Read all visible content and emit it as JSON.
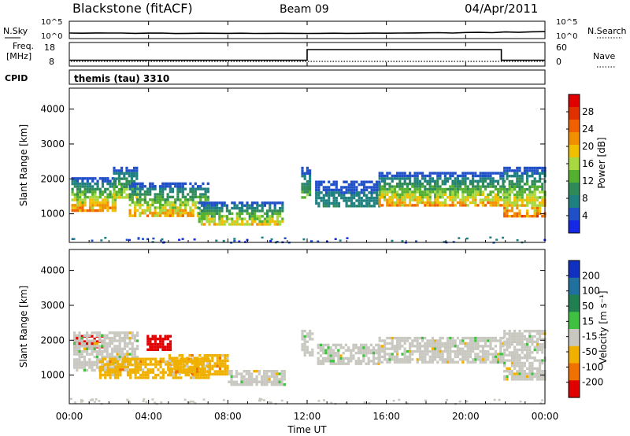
{
  "header": {
    "station": "Blackstone (fitACF)",
    "beam": "Beam 09",
    "date": "04/Apr/2011"
  },
  "chart_data": [
    {
      "type": "line",
      "panel": "noise",
      "left_label": "N.Sky",
      "right_label": "N.Search",
      "left_ticks": [
        "10^5",
        "10^0"
      ],
      "right_ticks": [
        "10^5",
        "10^0"
      ],
      "series": [
        {
          "values": [
            1.6,
            1.55,
            1.62,
            1.58,
            1.6,
            1.5,
            1.56,
            1.6,
            1.45,
            1.5,
            1.55,
            1.52,
            1.5,
            1.55,
            1.48,
            1.5,
            1.52,
            1.5,
            1.48,
            1.5,
            1.55,
            1.5,
            1.52,
            1.58,
            1.55,
            1.6,
            1.62,
            1.65,
            1.7,
            1.6,
            1.75,
            1.8,
            1.7,
            1.9,
            1.8,
            1.95,
            2.0
          ]
        }
      ]
    },
    {
      "type": "line",
      "panel": "frequency",
      "left_label": "Freq.",
      "left_unit": "[MHz]",
      "right_label": "Nave",
      "left_ticks": [
        "18",
        "8"
      ],
      "right_ticks": [
        "60",
        "0"
      ],
      "freq_segments": [
        {
          "start_hour": 0.0,
          "end_hour": 12.0,
          "value_mhz": 10.5
        },
        {
          "start_hour": 12.0,
          "end_hour": 21.8,
          "value_mhz": 15.0
        },
        {
          "start_hour": 21.8,
          "end_hour": 24.0,
          "value_mhz": 10.5
        }
      ],
      "nave_level": 10
    },
    {
      "type": "table",
      "panel": "cpid",
      "label": "CPID",
      "value": "themis (tau) 3310"
    },
    {
      "type": "heatmap",
      "panel": "power",
      "ylabel": "Slant Range [km]",
      "yticks": [
        1000,
        2000,
        3000,
        4000
      ],
      "ylim": [
        180,
        4600
      ],
      "xlim": [
        0,
        24
      ],
      "colorbar_label": "Power [dB]",
      "colorbar_ticks": [
        "28",
        "24",
        "20",
        "16",
        "12",
        "8",
        "4"
      ],
      "colors": [
        "#1428e6",
        "#2050c8",
        "#208080",
        "#2e8b57",
        "#55b030",
        "#a8d840",
        "#f0c000",
        "#f09000",
        "#f06000",
        "#e03000",
        "#e00000"
      ],
      "vmin": 0,
      "vmax": 32,
      "bands": [
        {
          "t0": 0.1,
          "t1": 2.3,
          "r_lo": 1100,
          "r_hi": 2050,
          "p_lo": 4,
          "p_hi": 28
        },
        {
          "t0": 2.2,
          "t1": 3.4,
          "r_lo": 1500,
          "r_hi": 2350,
          "p_lo": 4,
          "p_hi": 20
        },
        {
          "t0": 3.0,
          "t1": 7.0,
          "r_lo": 950,
          "r_hi": 1900,
          "p_lo": 4,
          "p_hi": 26
        },
        {
          "t0": 6.5,
          "t1": 10.8,
          "r_lo": 700,
          "r_hi": 1350,
          "p_lo": 4,
          "p_hi": 24
        },
        {
          "t0": 11.7,
          "t1": 12.2,
          "r_lo": 1500,
          "r_hi": 2350,
          "p_lo": 4,
          "p_hi": 16
        },
        {
          "t0": 12.4,
          "t1": 15.6,
          "r_lo": 1200,
          "r_hi": 1950,
          "p_lo": 4,
          "p_hi": 10
        },
        {
          "t0": 15.6,
          "t1": 21.9,
          "r_lo": 1250,
          "r_hi": 2200,
          "p_lo": 4,
          "p_hi": 26
        },
        {
          "t0": 21.9,
          "t1": 24.0,
          "r_lo": 900,
          "r_hi": 2350,
          "p_lo": 4,
          "p_hi": 30
        }
      ]
    },
    {
      "type": "heatmap",
      "panel": "velocity",
      "ylabel": "Slant Range [km]",
      "xlabel": "Time UT",
      "xticks": [
        "00:00",
        "04:00",
        "08:00",
        "12:00",
        "16:00",
        "20:00",
        "00:00"
      ],
      "yticks": [
        1000,
        2000,
        3000,
        4000
      ],
      "ylim": [
        180,
        4600
      ],
      "xlim": [
        0,
        24
      ],
      "colorbar_label": "Velocity [m s⁻¹]",
      "colorbar_ticks": [
        "200",
        "100",
        "50",
        "15",
        "-15",
        "-50",
        "-100",
        "-200"
      ],
      "colors": [
        "#1030c0",
        "#2070a0",
        "#208050",
        "#40c040",
        "#c8c8c0",
        "#f0b000",
        "#f07000",
        "#e00000"
      ],
      "bands": [
        {
          "t0": 0.2,
          "t1": 1.6,
          "r_lo": 1800,
          "r_hi": 2150,
          "color_index": 7
        },
        {
          "t0": 0.2,
          "t1": 3.4,
          "r_lo": 1150,
          "r_hi": 2250,
          "color_index": 4
        },
        {
          "t0": 1.5,
          "t1": 7.0,
          "r_lo": 900,
          "r_hi": 1500,
          "color_index": 5
        },
        {
          "t0": 3.9,
          "t1": 5.1,
          "r_lo": 1700,
          "r_hi": 2150,
          "color_index": 7
        },
        {
          "t0": 5.0,
          "t1": 8.0,
          "r_lo": 1000,
          "r_hi": 1600,
          "color_index": 5
        },
        {
          "t0": 8.0,
          "t1": 10.8,
          "r_lo": 700,
          "r_hi": 1150,
          "color_index": 4
        },
        {
          "t0": 11.7,
          "t1": 12.3,
          "r_lo": 1600,
          "r_hi": 2300,
          "color_index": 4
        },
        {
          "t0": 12.5,
          "t1": 15.6,
          "r_lo": 1300,
          "r_hi": 1900,
          "color_index": 4
        },
        {
          "t0": 15.6,
          "t1": 21.9,
          "r_lo": 1350,
          "r_hi": 2100,
          "color_index": 4
        },
        {
          "t0": 21.9,
          "t1": 24.0,
          "r_lo": 900,
          "r_hi": 2300,
          "color_index": 4
        }
      ]
    }
  ]
}
